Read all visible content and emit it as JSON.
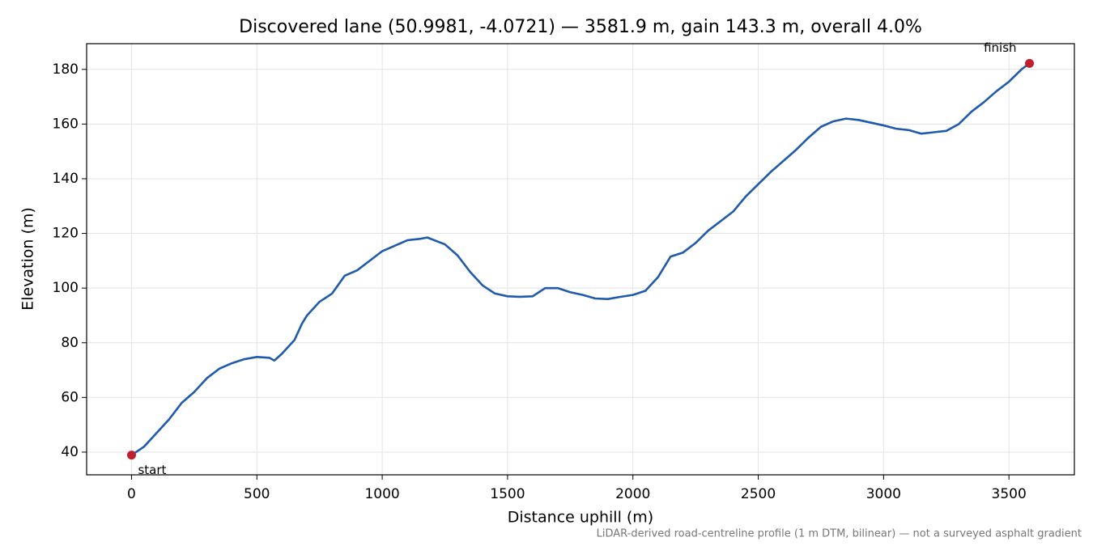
{
  "chart_data": {
    "type": "line",
    "title": "Discovered lane (50.9981, -4.0721) — 3581.9 m, gain 143.3 m, overall 4.0%",
    "x_label": "Distance uphill (m)",
    "y_label": "Elevation (m)",
    "footnote": "LiDAR-derived road-centreline profile (1 m DTM, bilinear) — not a surveyed asphalt gradient",
    "x": [
      0,
      50,
      100,
      150,
      200,
      250,
      300,
      350,
      400,
      450,
      500,
      550,
      570,
      600,
      650,
      680,
      700,
      750,
      800,
      850,
      900,
      950,
      1000,
      1050,
      1100,
      1150,
      1180,
      1250,
      1300,
      1350,
      1400,
      1450,
      1500,
      1550,
      1600,
      1650,
      1700,
      1750,
      1800,
      1850,
      1900,
      1950,
      2000,
      2050,
      2100,
      2150,
      2200,
      2250,
      2300,
      2350,
      2400,
      2450,
      2500,
      2550,
      2600,
      2650,
      2700,
      2750,
      2800,
      2850,
      2900,
      2950,
      3000,
      3050,
      3100,
      3150,
      3200,
      3250,
      3300,
      3350,
      3400,
      3450,
      3500,
      3550,
      3581.9
    ],
    "series": [
      {
        "color": "#1f5aad",
        "values": [
          38.9,
          42,
          47,
          52,
          58,
          62,
          67,
          70.5,
          72.5,
          74,
          74.8,
          74.5,
          73.5,
          76,
          81,
          87,
          90,
          95,
          98,
          104.5,
          106.5,
          110,
          113.5,
          115.5,
          117.5,
          118,
          118.5,
          116,
          112,
          106,
          101,
          98,
          97,
          96.8,
          97,
          100,
          100,
          98.5,
          97.5,
          96.2,
          96,
          96.8,
          97.5,
          99,
          104,
          111.5,
          113,
          116.5,
          121,
          124.5,
          128,
          133.5,
          138,
          142.5,
          146.5,
          150.5,
          155,
          159,
          161,
          162,
          161.5,
          160.5,
          159.5,
          158.3,
          157.8,
          156.5,
          157,
          157.5,
          160,
          164.5,
          168,
          172,
          175.5,
          180,
          182.2
        ]
      }
    ],
    "points": {
      "color": "#c0202c",
      "x": [
        0,
        3581.9
      ],
      "values": [
        38.9,
        182.2
      ],
      "labels": [
        "start",
        "finish"
      ]
    },
    "xlim": [
      -179.1,
      3761.0
    ],
    "xticks": [
      0,
      500,
      1000,
      1500,
      2000,
      2500,
      3000,
      3500
    ],
    "ylim": [
      31.7,
      189.4
    ],
    "yticks": [
      40,
      60,
      80,
      100,
      120,
      140,
      160,
      180
    ],
    "grid": true
  }
}
